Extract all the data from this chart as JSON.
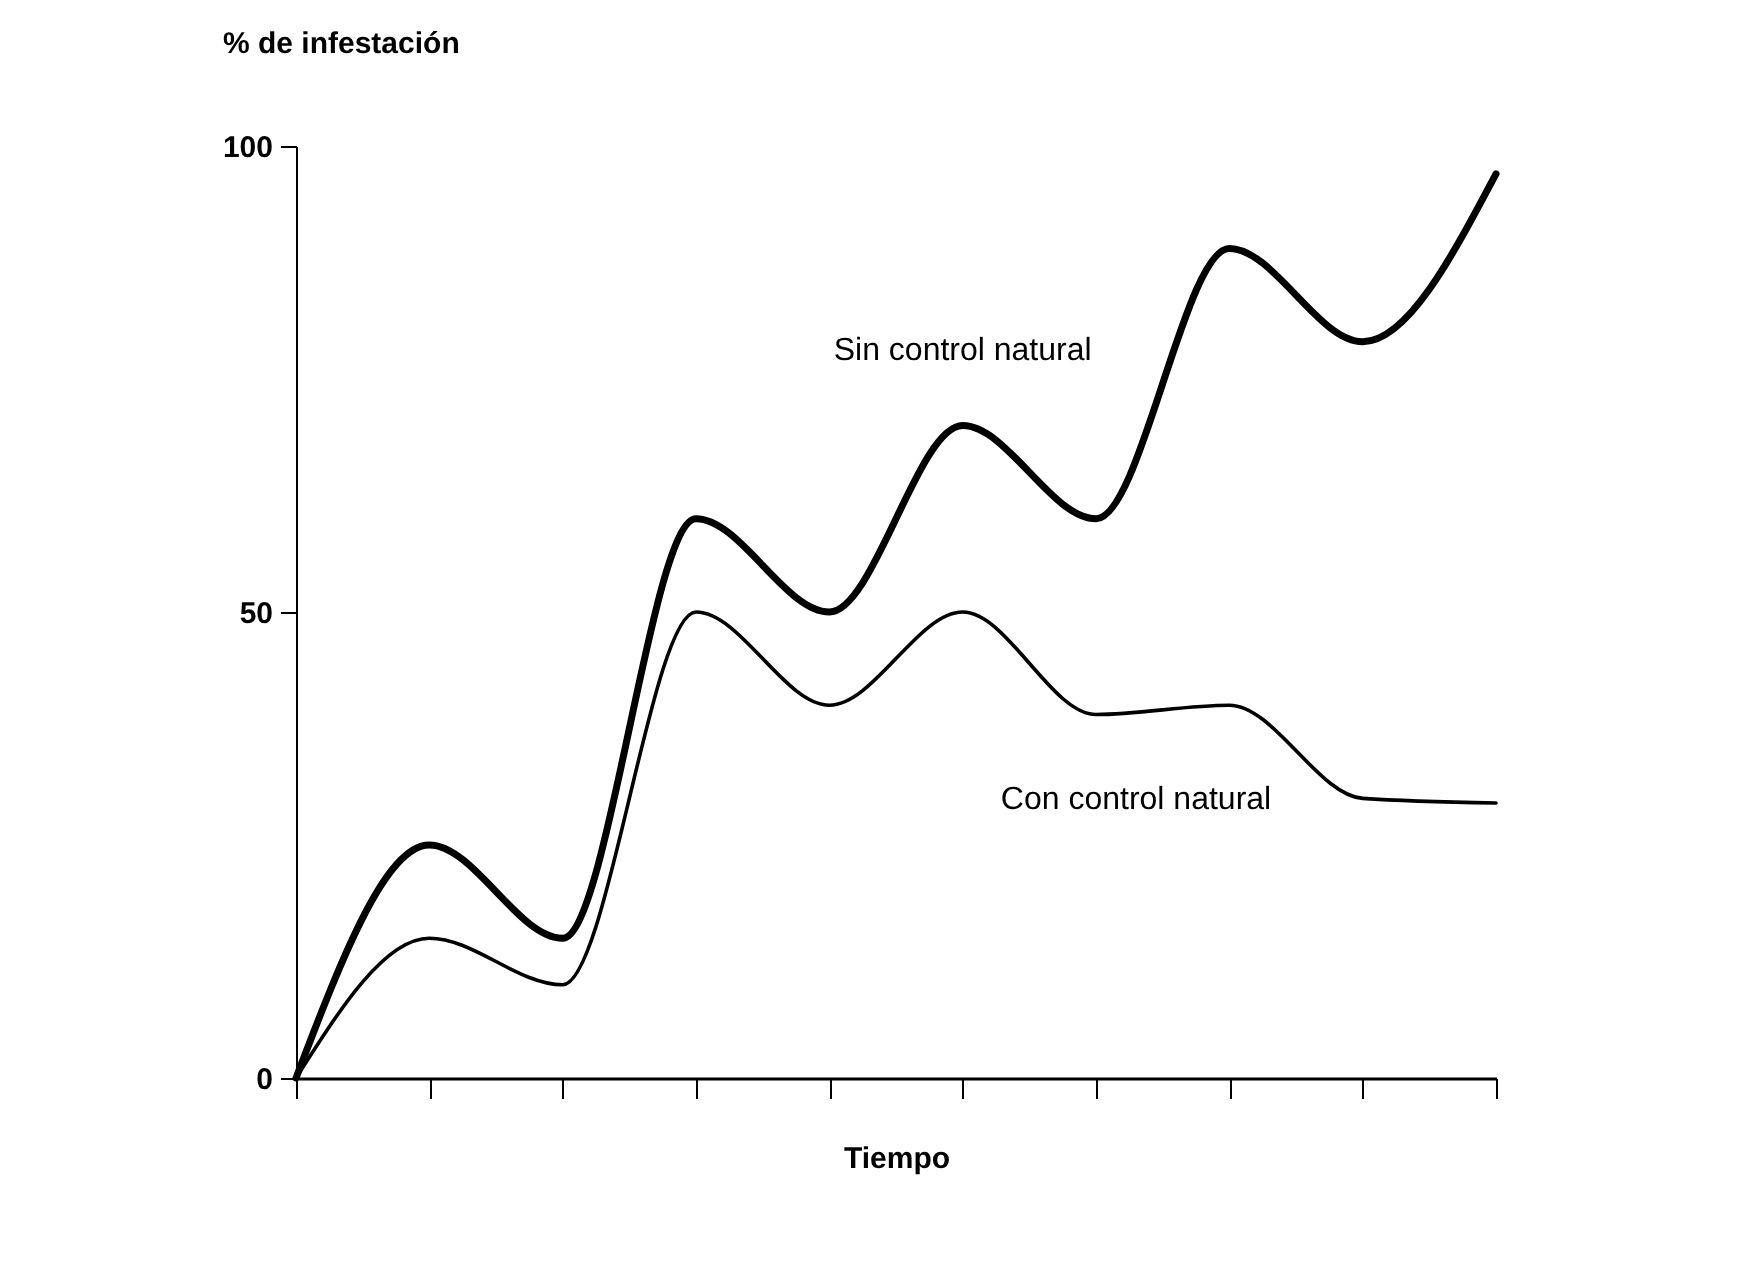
{
  "chart_data": {
    "type": "line",
    "ylabel": "% de infestación",
    "xlabel": "Tiempo",
    "categories": [
      null,
      null,
      null,
      null,
      null,
      null,
      null,
      null,
      null,
      null
    ],
    "series": [
      {
        "name": "Sin control natural",
        "color": "#000000",
        "values": [
          0,
          25,
          15,
          60,
          50,
          70,
          60,
          89,
          79,
          97
        ]
      },
      {
        "name": "Con control natural",
        "color": "#000000",
        "values": [
          0,
          15,
          10,
          50,
          40,
          50,
          39,
          40,
          30,
          29.5
        ]
      }
    ],
    "ylim": [
      0,
      100
    ],
    "yticks": [
      0,
      50,
      100
    ],
    "tick_labels": "y",
    "grid": false,
    "marker": "none",
    "line_style": "solid"
  }
}
